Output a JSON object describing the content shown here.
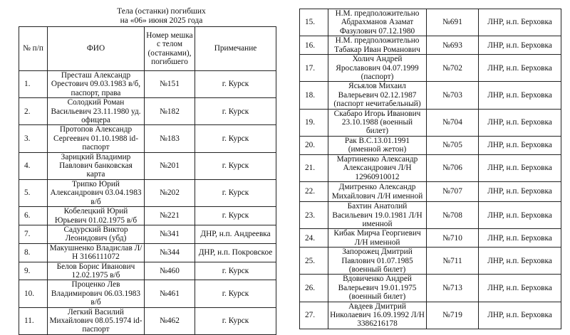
{
  "title": {
    "line1": "Тела (останки) погибших",
    "line2": "на «06» июня 2025 года"
  },
  "headers": {
    "num": "№ п/п",
    "fio": "ФИО",
    "bag": "Номер мешка с телом (останками), погибшего",
    "note": "Примечание"
  },
  "left_rows": [
    {
      "num": "1.",
      "fio": "Престаш Александр Орестович 09.03.1983 в/б, паспорт, права",
      "bag": "№151",
      "note": "г. Курск"
    },
    {
      "num": "2.",
      "fio": "Солодкий Роман Васильевич 23.11.1980 уд. офицера",
      "bag": "№182",
      "note": "г. Курск"
    },
    {
      "num": "3.",
      "fio": "Протопов Александр Сергеевич 01.10.1988 id-паспорт",
      "bag": "№183",
      "note": "г. Курск"
    },
    {
      "num": "4.",
      "fio": "Зарицкий Владимир Павлович банковская карта",
      "bag": "№201",
      "note": "г. Курск"
    },
    {
      "num": "5.",
      "fio": "Трипко Юрий Александрович 03.04.1983 в/б",
      "bag": "№202",
      "note": "г. Курск"
    },
    {
      "num": "6.",
      "fio": "Кобелецкий Юрий Юрьевич 01.02.1975 в/б",
      "bag": "№221",
      "note": "г. Курск"
    },
    {
      "num": "7.",
      "fio": "Садурский Виктор Леонидович (убд)",
      "bag": "№341",
      "note": "ДНР, н.п. Андреевка"
    },
    {
      "num": "8.",
      "fio": "Макушненко Владислав Л/Н 3166111072",
      "bag": "№344",
      "note": "ДНР, н.п. Покровское"
    },
    {
      "num": "9.",
      "fio": "Белов Борис Иванович 12.02.1975 в/б",
      "bag": "№460",
      "note": "г. Курск"
    },
    {
      "num": "10.",
      "fio": "Проценко Лев Владимирович 06.03.1983 в/б",
      "bag": "№461",
      "note": "г. Курск"
    },
    {
      "num": "11.",
      "fio": "Легкий Василий Михайлович 08.05.1974 id-паспорт",
      "bag": "№462",
      "note": "г. Курск"
    }
  ],
  "right_rows": [
    {
      "num": "15.",
      "fio": "Н.М. предположительно Абдрахманов Азамат Фазулович 07.12.1980",
      "bag": "№691",
      "note": "ЛНР, н.п. Берховка"
    },
    {
      "num": "16.",
      "fio": "Н.М. предположительно Табакар Иван Романович",
      "bag": "№693",
      "note": "ЛНР, н.п. Берховка"
    },
    {
      "num": "17.",
      "fio": "Холич Андрей Ярославович 04.07.1999 (паспорт)",
      "bag": "№702",
      "note": "ЛНР, н.п. Берховка"
    },
    {
      "num": "18.",
      "fio": "Ясьялов Михаил Валерьевич 02.12.1987 (паспорт нечитабельный)",
      "bag": "№703",
      "note": "ЛНР, н.п. Берховка"
    },
    {
      "num": "19.",
      "fio": "Скабаро Игорь Иванович 23.10.1988 (военный билет)",
      "bag": "№704",
      "note": "ЛНР, н.п. Берховка"
    },
    {
      "num": "20.",
      "fio": "Рак В.С.13.01.1991 (именной жетон)",
      "bag": "№705",
      "note": "ЛНР, н.п. Берховка"
    },
    {
      "num": "21.",
      "fio": "Мартиненко Александр Александрович Л/Н 12960910012",
      "bag": "№706",
      "note": "ЛНР, н.п. Берховка"
    },
    {
      "num": "22.",
      "fio": "Дмитренко Александр Михайлович Л/Н именной",
      "bag": "№707",
      "note": "ЛНР, н.п. Берховка"
    },
    {
      "num": "23.",
      "fio": "Бахтин Анатолий Васильевич 19.0.1981 Л/Н именной",
      "bag": "№708",
      "note": "ЛНР, н.п. Берховка"
    },
    {
      "num": "24.",
      "fio": "Кибак Мирча Георгиевич Л/Н именной",
      "bag": "№710",
      "note": "ЛНР, н.п. Берховка"
    },
    {
      "num": "25.",
      "fio": "Запорожец Дмитрий Павлович 01.07.1985 (военный билет)",
      "bag": "№711",
      "note": "ЛНР, н.п. Берховка"
    },
    {
      "num": "26.",
      "fio": "Вдовиченко Андрей Валерьевич 19.01.1975 (военный билет)",
      "bag": "№713",
      "note": "ЛНР, н.п. Берховка"
    },
    {
      "num": "27.",
      "fio": "Авдеев Дмитрий Николаевич 16.09.1992 Л/Н 3386216178",
      "bag": "№719",
      "note": "ЛНР, н.п. Берховка"
    }
  ]
}
